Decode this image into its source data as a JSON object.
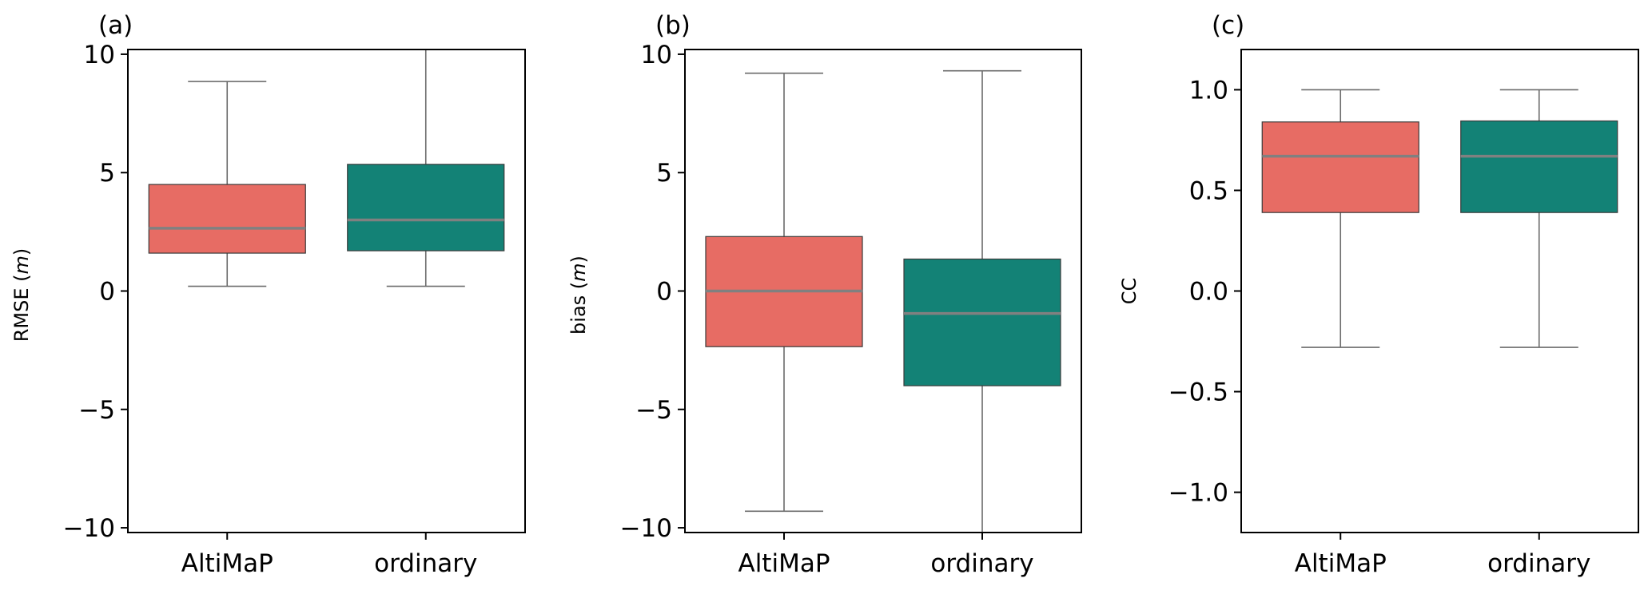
{
  "colors": {
    "altimap": "#e76c64",
    "ordinary": "#138276",
    "median": "#808080",
    "whisker": "#6b6b6b",
    "axes": "#000000"
  },
  "chart_data": [
    {
      "type": "box",
      "panel_label": "(a)",
      "ylabel": "RMSE (m)",
      "ylabel_main": "RMSE (",
      "ylabel_unit": "m",
      "ylabel_close": ")",
      "ylim": [
        -10.2,
        10.2
      ],
      "yticks": [
        10,
        5,
        0,
        -5,
        -10
      ],
      "ytick_labels": [
        "10",
        "5",
        "0",
        "−5",
        "−10"
      ],
      "categories": [
        "AltiMaP",
        "ordinary"
      ],
      "boxes": [
        {
          "name": "AltiMaP",
          "whislo": 0.2,
          "q1": 1.6,
          "med": 2.65,
          "q3": 4.5,
          "whishi": 8.85
        },
        {
          "name": "ordinary",
          "whislo": 0.2,
          "q1": 1.7,
          "med": 3.0,
          "q3": 5.35,
          "whishi": 10.2
        }
      ]
    },
    {
      "type": "box",
      "panel_label": "(b)",
      "ylabel": "bias (m)",
      "ylabel_main": "bias (",
      "ylabel_unit": "m",
      "ylabel_close": ")",
      "ylim": [
        -10.2,
        10.2
      ],
      "yticks": [
        10,
        5,
        0,
        -5,
        -10
      ],
      "ytick_labels": [
        "10",
        "5",
        "0",
        "−5",
        "−10"
      ],
      "categories": [
        "AltiMaP",
        "ordinary"
      ],
      "boxes": [
        {
          "name": "AltiMaP",
          "whislo": -9.3,
          "q1": -2.35,
          "med": 0.0,
          "q3": 2.3,
          "whishi": 9.2
        },
        {
          "name": "ordinary",
          "whislo": -10.2,
          "q1": -4.0,
          "med": -0.95,
          "q3": 1.35,
          "whishi": 9.3
        }
      ]
    },
    {
      "type": "box",
      "panel_label": "(c)",
      "ylabel": "CC",
      "ylabel_main": "CC",
      "ylabel_unit": "",
      "ylabel_close": "",
      "ylim": [
        -1.2,
        1.2
      ],
      "yticks": [
        1.0,
        0.5,
        0.0,
        -0.5,
        -1.0
      ],
      "ytick_labels": [
        "1.0",
        "0.5",
        "0.0",
        "−0.5",
        "−1.0"
      ],
      "categories": [
        "AltiMaP",
        "ordinary"
      ],
      "boxes": [
        {
          "name": "AltiMaP",
          "whislo": -0.28,
          "q1": 0.39,
          "med": 0.67,
          "q3": 0.84,
          "whishi": 1.0
        },
        {
          "name": "ordinary",
          "whislo": -0.28,
          "q1": 0.39,
          "med": 0.67,
          "q3": 0.845,
          "whishi": 1.0
        }
      ]
    }
  ]
}
